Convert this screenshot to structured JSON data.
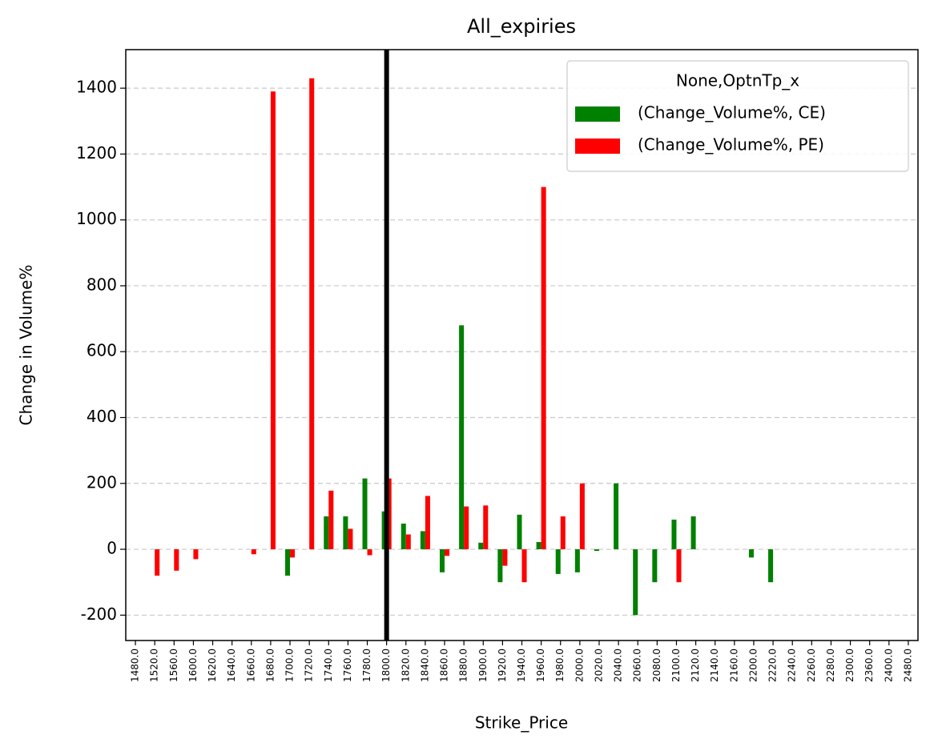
{
  "chart_data": {
    "type": "bar",
    "title": "All_expiries",
    "x_label": "Strike_Price",
    "y_label": "Change in Volume%",
    "categories": [
      "1480.0",
      "1520.0",
      "1560.0",
      "1600.0",
      "1620.0",
      "1640.0",
      "1660.0",
      "1680.0",
      "1700.0",
      "1720.0",
      "1740.0",
      "1760.0",
      "1780.0",
      "1800.0",
      "1820.0",
      "1840.0",
      "1860.0",
      "1880.0",
      "1900.0",
      "1920.0",
      "1940.0",
      "1960.0",
      "1980.0",
      "2000.0",
      "2020.0",
      "2040.0",
      "2060.0",
      "2080.0",
      "2100.0",
      "2120.0",
      "2140.0",
      "2160.0",
      "2200.0",
      "2220.0",
      "2240.0",
      "2260.0",
      "2280.0",
      "2300.0",
      "2360.0",
      "2400.0",
      "2480.0"
    ],
    "series": [
      {
        "name": "(Change_Volume%, CE)",
        "color": "#008000",
        "values": [
          null,
          null,
          null,
          null,
          null,
          null,
          null,
          null,
          -80,
          null,
          100,
          100,
          215,
          115,
          78,
          55,
          -70,
          680,
          20,
          -100,
          105,
          22,
          -75,
          -70,
          -5,
          200,
          -200,
          -100,
          90,
          100,
          null,
          null,
          -25,
          -100,
          null,
          null,
          null,
          null,
          null,
          null,
          null
        ]
      },
      {
        "name": "(Change_Volume%, PE)",
        "color": "#ff0000",
        "values": [
          null,
          -80,
          -65,
          -30,
          null,
          null,
          -15,
          1390,
          -25,
          1430,
          178,
          62,
          -18,
          215,
          45,
          162,
          -20,
          130,
          133,
          -50,
          -100,
          1100,
          100,
          200,
          null,
          null,
          null,
          null,
          -100,
          null,
          null,
          null,
          null,
          null,
          null,
          null,
          null,
          null,
          null,
          null,
          null
        ]
      }
    ],
    "legend_title": "None,OptnTp_x",
    "legend_position": "upper right",
    "vline": "1800.0",
    "vline_color": "#000000",
    "ylim": [
      -277,
      1517
    ],
    "yticks": [
      -200,
      0,
      200,
      400,
      600,
      800,
      1000,
      1200,
      1400
    ],
    "grid": true
  }
}
